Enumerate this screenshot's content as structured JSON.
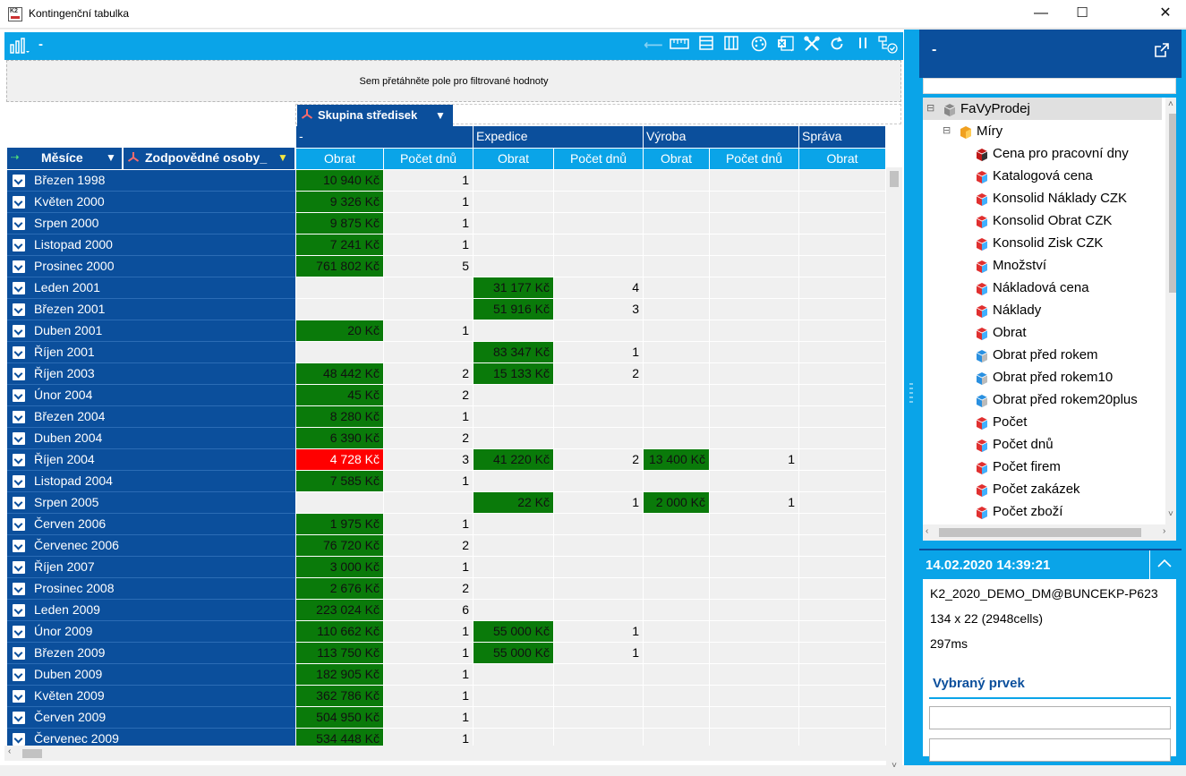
{
  "window": {
    "title": "Kontingenční tabulka",
    "icon_label": "K2",
    "minimize": "—",
    "maximize": "☐",
    "close": "✕"
  },
  "toolbar": {
    "title": "-",
    "icons": [
      "ruler-icon",
      "rows-icon",
      "columns-icon",
      "palette-icon",
      "excel-icon",
      "tools-icon",
      "refresh-icon",
      "pause-icon",
      "tree-check-icon"
    ]
  },
  "filter_area": {
    "hint": "Sem přetáhněte pole pro filtrované hodnoty"
  },
  "column_field": {
    "label": "Skupina středisek"
  },
  "row_fields": [
    {
      "label": "Měsíce"
    },
    {
      "label": "Zodpovědné osoby_"
    }
  ],
  "column_groups": [
    "-",
    "Expedice",
    "Výroba",
    "Správa"
  ],
  "sub_headers": [
    "Obrat",
    "Počet dnů",
    "Obrat",
    "Počet dnů",
    "Obrat",
    "Počet dnů",
    "Obrat"
  ],
  "colors": {
    "dark_blue": "#0b4f9c",
    "light_blue": "#0aa4e8",
    "green": "#0a7a0a",
    "red": "#ff0000"
  },
  "rows": [
    {
      "label": "Březen 1998",
      "cells": [
        "10 940 Kč",
        "1",
        "",
        "",
        "",
        "",
        ""
      ],
      "fmt": [
        "g",
        "",
        "",
        "",
        "",
        "",
        ""
      ]
    },
    {
      "label": "Květen 2000",
      "cells": [
        "9 326 Kč",
        "1",
        "",
        "",
        "",
        "",
        ""
      ],
      "fmt": [
        "g",
        "",
        "",
        "",
        "",
        "",
        ""
      ]
    },
    {
      "label": "Srpen 2000",
      "cells": [
        "9 875 Kč",
        "1",
        "",
        "",
        "",
        "",
        ""
      ],
      "fmt": [
        "g",
        "",
        "",
        "",
        "",
        "",
        ""
      ]
    },
    {
      "label": "Listopad 2000",
      "cells": [
        "7 241 Kč",
        "1",
        "",
        "",
        "",
        "",
        ""
      ],
      "fmt": [
        "g",
        "",
        "",
        "",
        "",
        "",
        ""
      ]
    },
    {
      "label": "Prosinec 2000",
      "cells": [
        "761 802 Kč",
        "5",
        "",
        "",
        "",
        "",
        ""
      ],
      "fmt": [
        "g",
        "",
        "",
        "",
        "",
        "",
        ""
      ]
    },
    {
      "label": "Leden 2001",
      "cells": [
        "",
        "",
        "31 177 Kč",
        "4",
        "",
        "",
        ""
      ],
      "fmt": [
        "",
        "",
        "g",
        "",
        "",
        "",
        ""
      ]
    },
    {
      "label": "Březen 2001",
      "cells": [
        "",
        "",
        "51 916 Kč",
        "3",
        "",
        "",
        ""
      ],
      "fmt": [
        "",
        "",
        "g",
        "",
        "",
        "",
        ""
      ]
    },
    {
      "label": "Duben 2001",
      "cells": [
        "20 Kč",
        "1",
        "",
        "",
        "",
        "",
        ""
      ],
      "fmt": [
        "g",
        "",
        "",
        "",
        "",
        "",
        ""
      ]
    },
    {
      "label": "Říjen 2001",
      "cells": [
        "",
        "",
        "83 347 Kč",
        "1",
        "",
        "",
        ""
      ],
      "fmt": [
        "",
        "",
        "g",
        "",
        "",
        "",
        ""
      ]
    },
    {
      "label": "Říjen 2003",
      "cells": [
        "48 442 Kč",
        "2",
        "15 133 Kč",
        "2",
        "",
        "",
        ""
      ],
      "fmt": [
        "g",
        "",
        "g",
        "",
        "",
        "",
        ""
      ]
    },
    {
      "label": "Únor 2004",
      "cells": [
        "45 Kč",
        "2",
        "",
        "",
        "",
        "",
        ""
      ],
      "fmt": [
        "g",
        "",
        "",
        "",
        "",
        "",
        ""
      ]
    },
    {
      "label": "Březen 2004",
      "cells": [
        "8 280 Kč",
        "1",
        "",
        "",
        "",
        "",
        ""
      ],
      "fmt": [
        "g",
        "",
        "",
        "",
        "",
        "",
        ""
      ]
    },
    {
      "label": "Duben 2004",
      "cells": [
        "6 390 Kč",
        "2",
        "",
        "",
        "",
        "",
        ""
      ],
      "fmt": [
        "g",
        "",
        "",
        "",
        "",
        "",
        ""
      ]
    },
    {
      "label": "Říjen 2004",
      "cells": [
        "4 728 Kč",
        "3",
        "41 220 Kč",
        "2",
        "13 400 Kč",
        "1",
        ""
      ],
      "fmt": [
        "r",
        "",
        "g",
        "",
        "g",
        "",
        ""
      ]
    },
    {
      "label": "Listopad 2004",
      "cells": [
        "7 585 Kč",
        "1",
        "",
        "",
        "",
        "",
        ""
      ],
      "fmt": [
        "g",
        "",
        "",
        "",
        "",
        "",
        ""
      ]
    },
    {
      "label": "Srpen 2005",
      "cells": [
        "",
        "",
        "22 Kč",
        "1",
        "2 000 Kč",
        "1",
        ""
      ],
      "fmt": [
        "",
        "",
        "g",
        "",
        "g",
        "",
        ""
      ]
    },
    {
      "label": "Červen 2006",
      "cells": [
        "1 975 Kč",
        "1",
        "",
        "",
        "",
        "",
        ""
      ],
      "fmt": [
        "g",
        "",
        "",
        "",
        "",
        "",
        ""
      ]
    },
    {
      "label": "Červenec 2006",
      "cells": [
        "76 720 Kč",
        "2",
        "",
        "",
        "",
        "",
        ""
      ],
      "fmt": [
        "g",
        "",
        "",
        "",
        "",
        "",
        ""
      ]
    },
    {
      "label": "Říjen 2007",
      "cells": [
        "3 000 Kč",
        "1",
        "",
        "",
        "",
        "",
        ""
      ],
      "fmt": [
        "g",
        "",
        "",
        "",
        "",
        "",
        ""
      ]
    },
    {
      "label": "Prosinec 2008",
      "cells": [
        "2 676 Kč",
        "2",
        "",
        "",
        "",
        "",
        ""
      ],
      "fmt": [
        "g",
        "",
        "",
        "",
        "",
        "",
        ""
      ]
    },
    {
      "label": "Leden 2009",
      "cells": [
        "223 024 Kč",
        "6",
        "",
        "",
        "",
        "",
        ""
      ],
      "fmt": [
        "g",
        "",
        "",
        "",
        "",
        "",
        ""
      ]
    },
    {
      "label": "Únor 2009",
      "cells": [
        "110 662 Kč",
        "1",
        "55 000 Kč",
        "1",
        "",
        "",
        ""
      ],
      "fmt": [
        "g",
        "",
        "g",
        "",
        "",
        "",
        ""
      ]
    },
    {
      "label": "Březen 2009",
      "cells": [
        "113 750 Kč",
        "1",
        "55 000 Kč",
        "1",
        "",
        "",
        ""
      ],
      "fmt": [
        "g",
        "",
        "g",
        "",
        "",
        "",
        ""
      ]
    },
    {
      "label": "Duben 2009",
      "cells": [
        "182 905 Kč",
        "1",
        "",
        "",
        "",
        "",
        ""
      ],
      "fmt": [
        "g",
        "",
        "",
        "",
        "",
        "",
        ""
      ]
    },
    {
      "label": "Květen 2009",
      "cells": [
        "362 786 Kč",
        "1",
        "",
        "",
        "",
        "",
        ""
      ],
      "fmt": [
        "g",
        "",
        "",
        "",
        "",
        "",
        ""
      ]
    },
    {
      "label": "Červen 2009",
      "cells": [
        "504 950 Kč",
        "1",
        "",
        "",
        "",
        "",
        ""
      ],
      "fmt": [
        "g",
        "",
        "",
        "",
        "",
        "",
        ""
      ]
    },
    {
      "label": "Červenec 2009",
      "cells": [
        "534 448 Kč",
        "1",
        "",
        "",
        "",
        "",
        ""
      ],
      "fmt": [
        "g",
        "",
        "",
        "",
        "",
        "",
        ""
      ]
    }
  ],
  "right_panel": {
    "title": "-",
    "tree": {
      "root": "FaVyProdej",
      "group": "Míry",
      "items": [
        "Cena pro pracovní dny",
        "Katalogová cena",
        "Konsolid Náklady CZK",
        "Konsolid Obrat CZK",
        "Konsolid Zisk CZK",
        "Množství",
        "Nákladová cena",
        "Náklady",
        "Obrat",
        "Obrat před rokem",
        "Obrat před rokem10",
        "Obrat před rokem20plus",
        "Počet",
        "Počet dnů",
        "Počet firem",
        "Počet zakázek",
        "Počet zboží"
      ],
      "item_icons": [
        "cube-dark-icon",
        "cube-icon",
        "cube-icon",
        "cube-icon",
        "cube-icon",
        "cube-icon",
        "cube-icon",
        "cube-icon",
        "cube-icon",
        "calc-cube-icon",
        "calc-cube-icon",
        "calc-cube-icon",
        "cube-icon",
        "cube-icon",
        "cube-icon",
        "cube-icon",
        "cube-icon"
      ]
    },
    "info": {
      "timestamp": "14.02.2020 14:39:21",
      "connection": "K2_2020_DEMO_DM@BUNCEKP-P623",
      "size": "134 x 22 (2948cells)",
      "time": "297ms",
      "selected_title": "Vybraný prvek"
    }
  }
}
